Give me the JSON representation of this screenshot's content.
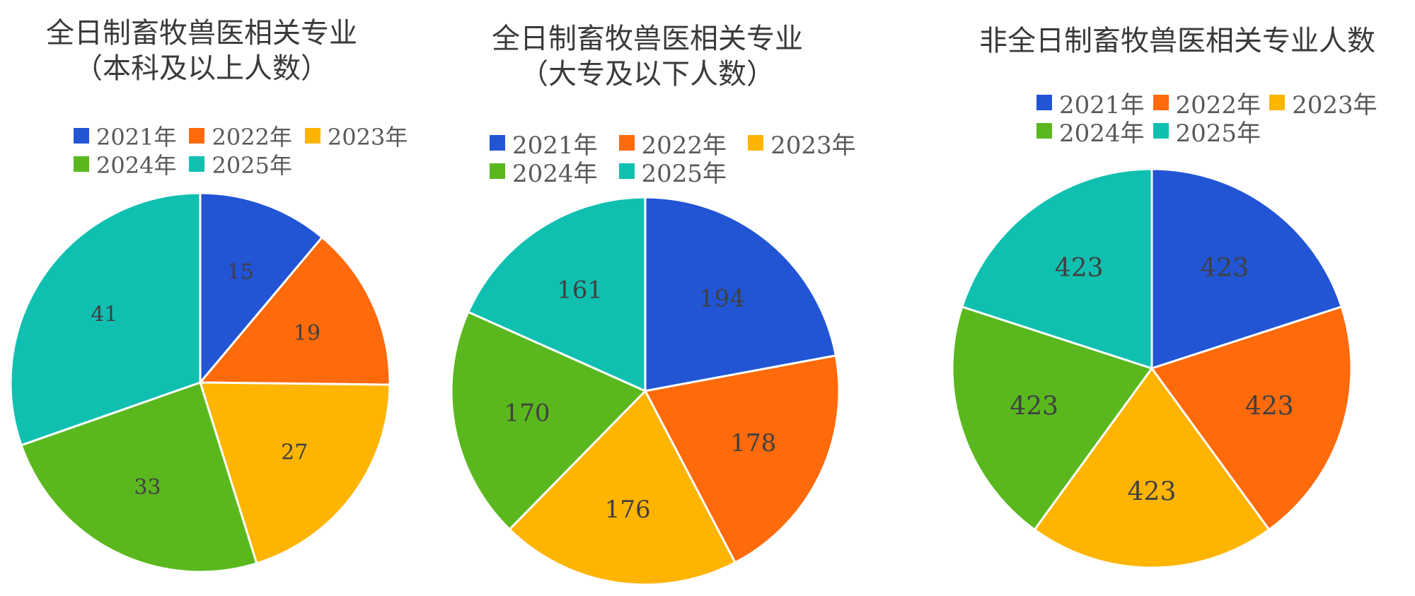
{
  "colors": [
    "#2255d4",
    "#ff6a0a",
    "#ffb400",
    "#5ab81e",
    "#0fc0b0"
  ],
  "chart_data": [
    {
      "type": "pie",
      "title_lines": [
        "全日制畜牧兽医相关专业",
        "（本科及以上人数）"
      ],
      "categories": [
        "2021年",
        "2022年",
        "2023年",
        "2024年",
        "2025年"
      ],
      "values": [
        15,
        19,
        27,
        33,
        41
      ],
      "legend_position": "top"
    },
    {
      "type": "pie",
      "title_lines": [
        "全日制畜牧兽医相关专业",
        "（大专及以下人数）"
      ],
      "categories": [
        "2021年",
        "2022年",
        "2023年",
        "2024年",
        "2025年"
      ],
      "values": [
        194,
        178,
        176,
        170,
        161
      ],
      "legend_position": "top"
    },
    {
      "type": "pie",
      "title_lines": [
        "非全日制畜牧兽医相关专业人数"
      ],
      "categories": [
        "2021年",
        "2022年",
        "2023年",
        "2024年",
        "2025年"
      ],
      "values": [
        423,
        423,
        423,
        423,
        423
      ],
      "legend_position": "top"
    }
  ]
}
